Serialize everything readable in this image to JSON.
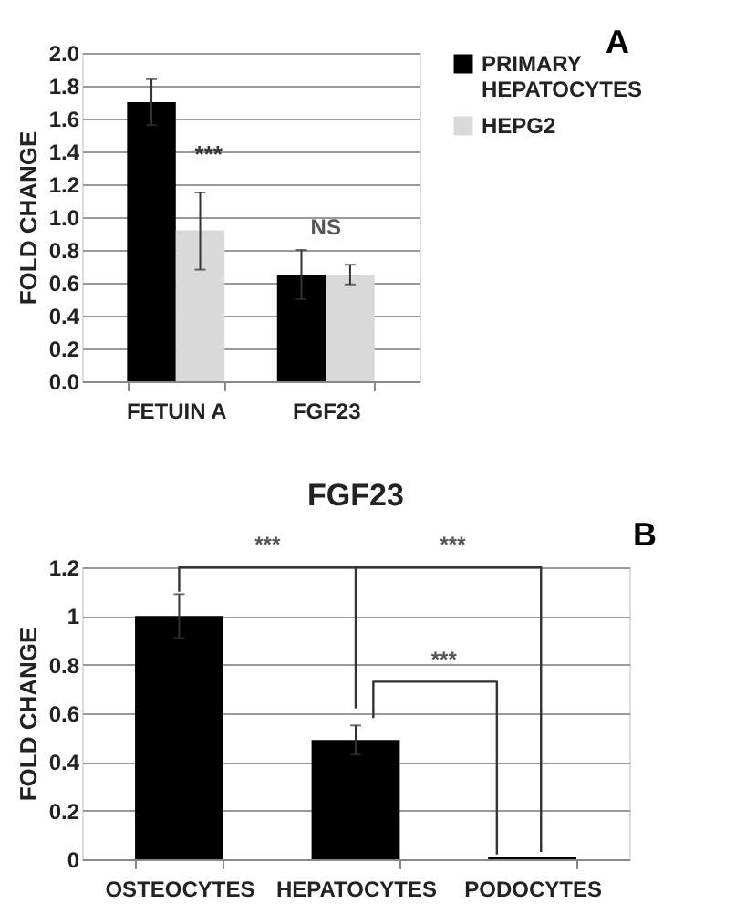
{
  "chart_data": [
    {
      "type": "bar",
      "categories": [
        "FETUIN A",
        "FGF23"
      ],
      "ylabel": "FOLD CHANGE",
      "series": [
        {
          "name": "PRIMARY HEPATOCYTES",
          "color": "#000000",
          "values": [
            1.7,
            0.65
          ],
          "errors": [
            0.14,
            0.15
          ]
        },
        {
          "name": "HEPG2",
          "color": "#d9d9d9",
          "values": [
            0.92,
            0.65
          ],
          "errors": [
            [
              0.68,
              1.15
            ],
            [
              0.59,
              0.71
            ]
          ]
        }
      ],
      "ylim": [
        0,
        2.0
      ],
      "yticks": [
        {
          "value": 0,
          "label": "0.0"
        },
        0.2,
        0.4,
        0.6,
        0.8,
        {
          "value": 1,
          "label": "1.0"
        },
        1.2,
        1.4,
        1.6,
        1.8,
        {
          "value": 2,
          "label": "2.0"
        }
      ],
      "grid": "y",
      "legend": "right",
      "annotations": [
        {
          "text": "***",
          "x": "FETUIN A",
          "y": 1.3
        },
        "NS",
        "A"
      ]
    },
    {
      "type": "bar",
      "title": "FGF23",
      "categories": [
        "OSTEOCYTES",
        "HEPATOCYTES",
        "PODOCYTES"
      ],
      "ylabel": "FOLD CHANGE",
      "series": [
        {
          "color": "#000000",
          "values": [
            1.0,
            0.49,
            0.01
          ],
          "errors": [
            0.09,
            0.06,
            null
          ]
        }
      ],
      "ylim": [
        0,
        1.2
      ],
      "yticks": [
        0,
        0.2,
        0.4,
        0.6,
        0.8,
        1,
        1.2
      ],
      "grid": "y",
      "legend": false,
      "annotations": [
        "***",
        "***",
        "***",
        "B"
      ]
    }
  ]
}
